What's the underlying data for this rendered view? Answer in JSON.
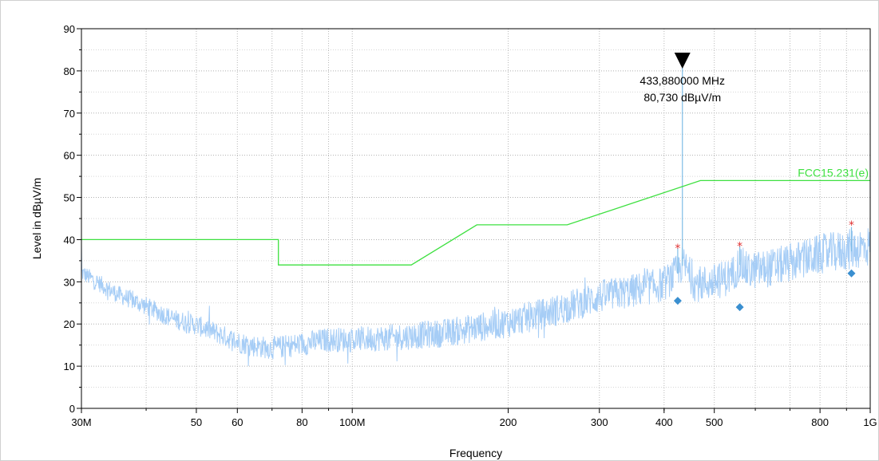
{
  "chart_data": {
    "type": "line",
    "xlabel": "Frequency",
    "ylabel": "Level in dBµV/m",
    "x_scale": "log",
    "xlim": [
      30,
      1000
    ],
    "ylim": [
      0,
      90
    ],
    "x_ticks": [
      {
        "value": 30,
        "label": "30M"
      },
      {
        "value": 50,
        "label": "50"
      },
      {
        "value": 60,
        "label": "60"
      },
      {
        "value": 80,
        "label": "80"
      },
      {
        "value": 100,
        "label": "100M"
      },
      {
        "value": 200,
        "label": "200"
      },
      {
        "value": 300,
        "label": "300"
      },
      {
        "value": 400,
        "label": "400"
      },
      {
        "value": 500,
        "label": "500"
      },
      {
        "value": 800,
        "label": "800"
      },
      {
        "value": 1000,
        "label": "1G"
      }
    ],
    "y_ticks": [
      0,
      10,
      20,
      30,
      40,
      50,
      60,
      70,
      80,
      90
    ],
    "grid": true,
    "colors": {
      "spectrum": "#a6cdf6",
      "limit": "#3ee040",
      "peaks": "#e03030",
      "quasi_peak": "#3a8fd0",
      "marker_line": "#7fbde6"
    },
    "limit_line": {
      "name": "FCC15.231(e)",
      "points": [
        [
          30,
          40
        ],
        [
          72,
          40
        ],
        [
          72,
          34
        ],
        [
          130,
          34
        ],
        [
          174,
          43.5
        ],
        [
          260,
          43.5
        ],
        [
          470,
          54
        ],
        [
          1000,
          54
        ]
      ]
    },
    "spectrum_envelope": [
      [
        30,
        32
      ],
      [
        35,
        27
      ],
      [
        40,
        24
      ],
      [
        45,
        21
      ],
      [
        50,
        19.5
      ],
      [
        55,
        17.5
      ],
      [
        60,
        15.5
      ],
      [
        65,
        14.5
      ],
      [
        70,
        14
      ],
      [
        75,
        14.5
      ],
      [
        80,
        15
      ],
      [
        90,
        16
      ],
      [
        100,
        16
      ],
      [
        120,
        16.5
      ],
      [
        150,
        17.5
      ],
      [
        200,
        20
      ],
      [
        250,
        23
      ],
      [
        300,
        26
      ],
      [
        350,
        27.5
      ],
      [
        400,
        29
      ],
      [
        425,
        32
      ],
      [
        435,
        34
      ],
      [
        460,
        29
      ],
      [
        500,
        29.5
      ],
      [
        540,
        31
      ],
      [
        560,
        34
      ],
      [
        580,
        32
      ],
      [
        650,
        33
      ],
      [
        700,
        34
      ],
      [
        800,
        36
      ],
      [
        900,
        37
      ],
      [
        1000,
        38
      ]
    ],
    "spectrum_spikes": [
      [
        425,
        38
      ],
      [
        433.88,
        80.73
      ],
      [
        560,
        38.5
      ],
      [
        920,
        43
      ]
    ],
    "peaks": [
      [
        425,
        38
      ],
      [
        560,
        38.5
      ],
      [
        920,
        43.5
      ]
    ],
    "quasi_peak_values": [
      [
        425,
        25.5
      ],
      [
        560,
        24
      ],
      [
        920,
        32
      ]
    ],
    "marker": {
      "x": 433.88,
      "y": 80.73,
      "frequency_label": "433,880000 MHz",
      "level_label": "80,730 dBµV/m"
    }
  }
}
